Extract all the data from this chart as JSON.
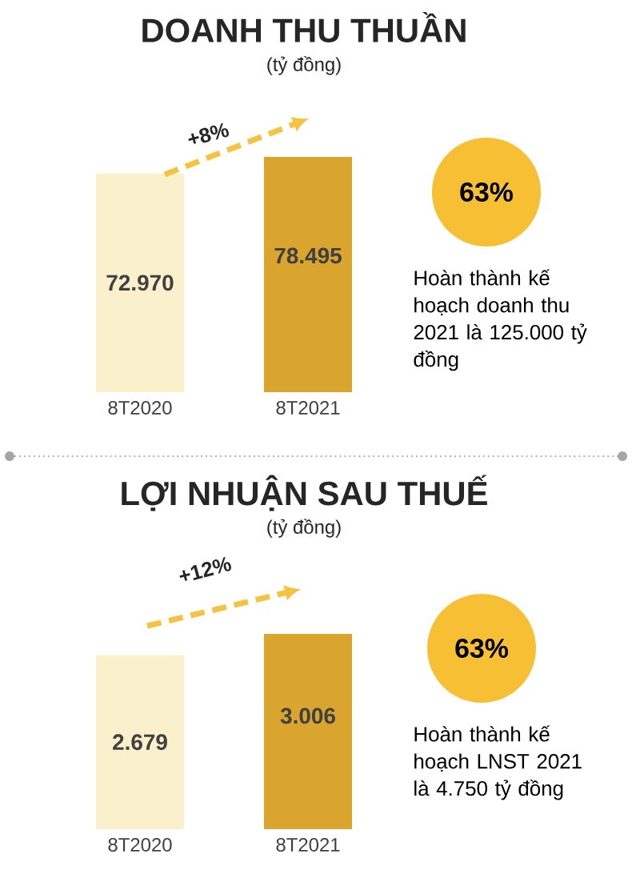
{
  "chart_data": [
    {
      "type": "bar",
      "title": "DOANH THU THUẦN",
      "subtitle": "(tỷ đồng)",
      "categories": [
        "8T2020",
        "8T2021"
      ],
      "values": [
        72970,
        78495
      ],
      "value_labels": [
        "72.970",
        "78.495"
      ],
      "colors": [
        "#fbf0cc",
        "#d9a52e"
      ],
      "annotations": [
        "+8%",
        "63%",
        "Hoàn thành kế hoạch doanh thu 2021 là 125.000 tỷ đồng"
      ]
    },
    {
      "type": "bar",
      "title": "LỢI NHUẬN SAU THUẾ",
      "subtitle": "(tỷ đồng)",
      "categories": [
        "8T2020",
        "8T2021"
      ],
      "values": [
        2679,
        3006
      ],
      "value_labels": [
        "2.679",
        "3.006"
      ],
      "colors": [
        "#fbf0cc",
        "#d9a52e"
      ],
      "annotations": [
        "+12%",
        "63%",
        "Hoàn thành kế hoạch LNST 2021 là 4.750 tỷ đồng"
      ]
    }
  ]
}
